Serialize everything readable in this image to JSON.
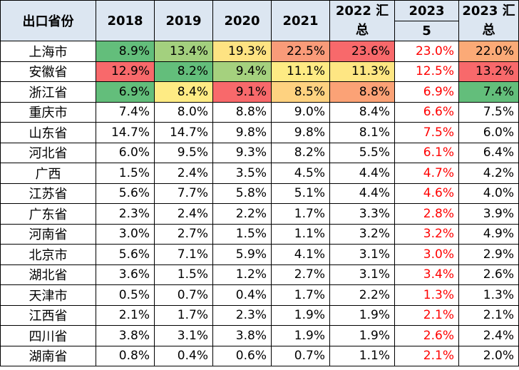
{
  "headers": {
    "province": "出口省份",
    "y2018": "2018",
    "y2019": "2019",
    "y2020": "2020",
    "y2021": "2021",
    "y2022": "2022 汇总",
    "y2023_5_top": "2023",
    "y2023_5_bottom": "5",
    "y2023_total": "2023 汇总"
  },
  "rows": [
    {
      "province": "上海市",
      "values": [
        "8.9%",
        "13.4%",
        "19.3%",
        "22.5%",
        "23.6%",
        "23.0%",
        "22.0%"
      ],
      "colors": [
        "#63be7b",
        "#a3d07e",
        "#fee382",
        "#f99b79",
        "#f8696b",
        "",
        "#fbaa77"
      ]
    },
    {
      "province": "安徽省",
      "values": [
        "12.9%",
        "8.2%",
        "9.4%",
        "11.1%",
        "11.3%",
        "12.5%",
        "13.2%"
      ],
      "colors": [
        "#f8696b",
        "#63be7b",
        "#a5d17e",
        "#feeb84",
        "#fee683",
        "",
        "#f8696b"
      ]
    },
    {
      "province": "浙江省",
      "values": [
        "6.9%",
        "8.4%",
        "9.1%",
        "8.5%",
        "8.8%",
        "6.9%",
        "7.4%"
      ],
      "colors": [
        "#63be7b",
        "#feeb84",
        "#f8696b",
        "#fed280",
        "#fba276",
        "",
        "#63be7b"
      ]
    },
    {
      "province": "重庆市",
      "values": [
        "7.4%",
        "8.0%",
        "8.8%",
        "9.0%",
        "8.4%",
        "6.6%",
        "7.5%"
      ],
      "colors": [
        "",
        "",
        "",
        "",
        "",
        "",
        ""
      ]
    },
    {
      "province": "山东省",
      "values": [
        "14.7%",
        "14.7%",
        "9.8%",
        "9.8%",
        "8.1%",
        "7.5%",
        "6.0%"
      ],
      "colors": [
        "",
        "",
        "",
        "",
        "",
        "",
        ""
      ]
    },
    {
      "province": "河北省",
      "values": [
        "6.0%",
        "9.5%",
        "9.3%",
        "8.2%",
        "5.5%",
        "6.1%",
        "6.4%"
      ],
      "colors": [
        "",
        "",
        "",
        "",
        "",
        "",
        ""
      ]
    },
    {
      "province": "广西",
      "values": [
        "1.5%",
        "2.4%",
        "3.5%",
        "4.5%",
        "4.4%",
        "4.7%",
        "4.2%"
      ],
      "colors": [
        "",
        "",
        "",
        "",
        "",
        "",
        ""
      ]
    },
    {
      "province": "江苏省",
      "values": [
        "5.6%",
        "7.7%",
        "5.8%",
        "5.1%",
        "4.4%",
        "4.6%",
        "4.0%"
      ],
      "colors": [
        "",
        "",
        "",
        "",
        "",
        "",
        ""
      ]
    },
    {
      "province": "广东省",
      "values": [
        "2.3%",
        "2.4%",
        "2.2%",
        "1.7%",
        "3.3%",
        "2.8%",
        "3.9%"
      ],
      "colors": [
        "",
        "",
        "",
        "",
        "",
        "",
        ""
      ]
    },
    {
      "province": "河南省",
      "values": [
        "3.0%",
        "2.7%",
        "1.5%",
        "1.1%",
        "3.2%",
        "3.2%",
        "4.9%"
      ],
      "colors": [
        "",
        "",
        "",
        "",
        "",
        "",
        ""
      ]
    },
    {
      "province": "北京市",
      "values": [
        "5.6%",
        "7.1%",
        "5.9%",
        "4.1%",
        "3.1%",
        "3.0%",
        "2.9%"
      ],
      "colors": [
        "",
        "",
        "",
        "",
        "",
        "",
        ""
      ]
    },
    {
      "province": "湖北省",
      "values": [
        "3.6%",
        "1.5%",
        "1.2%",
        "2.7%",
        "3.1%",
        "3.4%",
        "2.6%"
      ],
      "colors": [
        "",
        "",
        "",
        "",
        "",
        "",
        ""
      ]
    },
    {
      "province": "天津市",
      "values": [
        "0.5%",
        "0.7%",
        "0.4%",
        "1.7%",
        "2.2%",
        "1.3%",
        "1.3%"
      ],
      "colors": [
        "",
        "",
        "",
        "",
        "",
        "",
        ""
      ]
    },
    {
      "province": "江西省",
      "values": [
        "2.1%",
        "1.7%",
        "2.3%",
        "1.9%",
        "1.9%",
        "2.1%",
        "2.1%"
      ],
      "colors": [
        "",
        "",
        "",
        "",
        "",
        "",
        ""
      ]
    },
    {
      "province": "四川省",
      "values": [
        "3.8%",
        "3.1%",
        "3.8%",
        "1.9%",
        "1.9%",
        "2.6%",
        "2.4%"
      ],
      "colors": [
        "",
        "",
        "",
        "",
        "",
        "",
        ""
      ]
    },
    {
      "province": "湖南省",
      "values": [
        "0.8%",
        "0.4%",
        "0.6%",
        "0.7%",
        "1.1%",
        "2.1%",
        "2.0%"
      ],
      "colors": [
        "",
        "",
        "",
        "",
        "",
        "",
        ""
      ]
    }
  ],
  "colors": {
    "header_bg": "#dce6f1",
    "highlight_text": "#ff0000",
    "border": "#000000"
  }
}
